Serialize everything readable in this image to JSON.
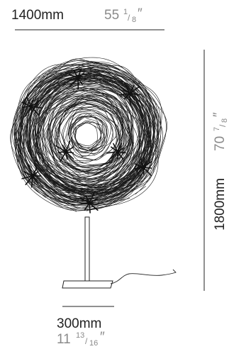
{
  "dimensions": {
    "width": {
      "metric": "1400mm",
      "imperial_whole": "55",
      "imperial_fraction_num": "1",
      "imperial_fraction_den": "8",
      "inch_mark": "″"
    },
    "height": {
      "metric": "1800mm",
      "imperial_whole": "70",
      "imperial_fraction_num": "7",
      "imperial_fraction_den": "8",
      "inch_mark": "″"
    },
    "base": {
      "metric": "300mm",
      "imperial_whole": "11",
      "imperial_fraction_num": "13",
      "imperial_fraction_den": "16",
      "inch_mark": "″"
    }
  },
  "colors": {
    "metric_text": "#222222",
    "imperial_text": "#8a8a8a",
    "line": "#222222",
    "wire": "#1a1a1a",
    "star": "#111111"
  },
  "icons": {
    "lamp": "floor-lamp-drawing",
    "star": "star-burst-light"
  }
}
